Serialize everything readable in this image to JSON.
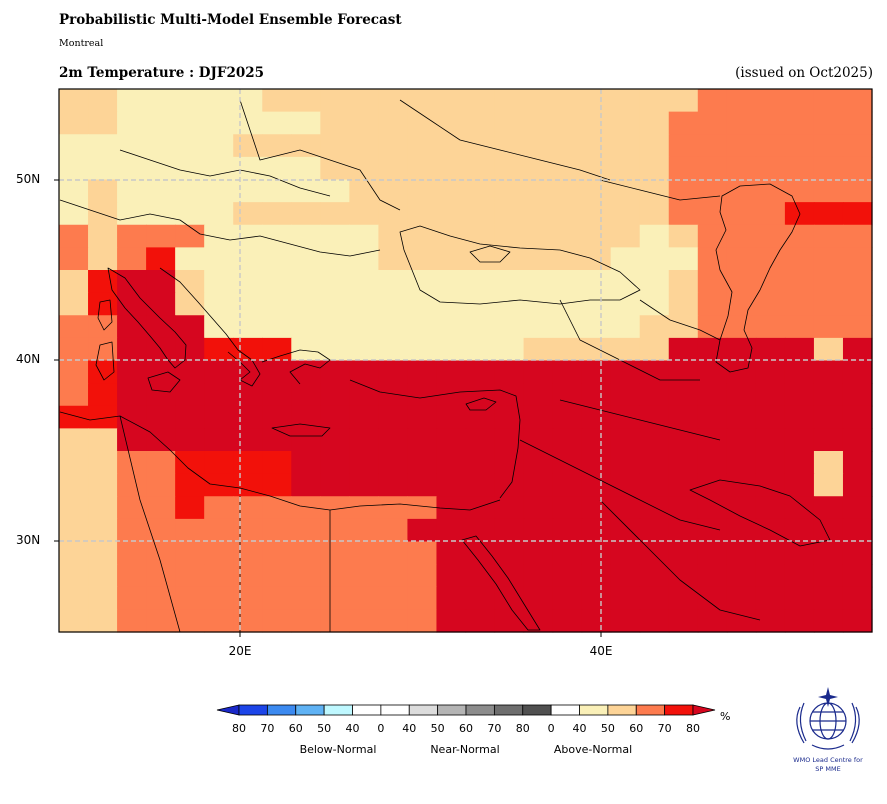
{
  "header": {
    "title": "Probabilistic Multi-Model Ensemble Forecast",
    "subtitle": "Montreal",
    "variable_period": "2m Temperature : DJF2025",
    "issued": "(issued on Oct2025)"
  },
  "map": {
    "lat_labels": [
      "50N",
      "40N",
      "30N"
    ],
    "lon_labels": [
      "20E",
      "40E"
    ],
    "lat_range": [
      25,
      55
    ],
    "lon_range": [
      10,
      55
    ],
    "cell_size_deg": 2.5,
    "category_colors": {
      "A40": "#faf0b8",
      "A50": "#fdd497",
      "A60": "#fd7b4e",
      "A70": "#f2110a",
      "A80": "#d6061f"
    },
    "grid_rows_top_to_bottom": [
      "5544444555555555555555666666",
      "5544444445555555555556666666",
      "4444445555555555555556666666",
      "4444444445555555555556666666",
      "4544444444555555555556666666",
      "4544445555555555555556666777",
      "6566644444455555555545666666",
      "6567444444455555555444666666",
      "5788544444444444444445666666",
      "5788544444444444444445666666",
      "6688844444444444444455666666",
      "6688877744444444555558888858",
      "6788888888888888888888888888",
      "6788888888888888888888888888",
      "7788888888888888888888888888",
      "5588888888888888888888888888",
      "5566777788888888888888888858",
      "5566777788888888888888888858",
      "5566766666666888888888888888",
      "5566666666668888888888888888",
      "5566666666666888888888888888",
      "5566666666666888888888888888",
      "5566666666666888888888888888",
      "5566666666666888888888888888"
    ]
  },
  "legend": {
    "colors": [
      "#1c45e8",
      "#3c8af0",
      "#5fb2f4",
      "#bff8ff",
      "#ffffff",
      "#ffffff",
      "#dcdcdc",
      "#b4b4b4",
      "#8c8c8c",
      "#6e6e6e",
      "#505050",
      "#ffffff",
      "#faf0b8",
      "#fdd497",
      "#fd7b4e",
      "#f2110a"
    ],
    "left_extend_color": "#1a28c8",
    "right_extend_color": "#d6061f",
    "tick_labels": [
      "80",
      "70",
      "60",
      "50",
      "40",
      "0",
      "40",
      "50",
      "60",
      "70",
      "80",
      "0",
      "40",
      "50",
      "60",
      "70",
      "80"
    ],
    "unit": "%",
    "group_labels": [
      "Below-Normal",
      "Near-Normal",
      "Above-Normal"
    ]
  },
  "logo": {
    "line1": "WMO Lead Centre for",
    "line2": "SP MME"
  }
}
